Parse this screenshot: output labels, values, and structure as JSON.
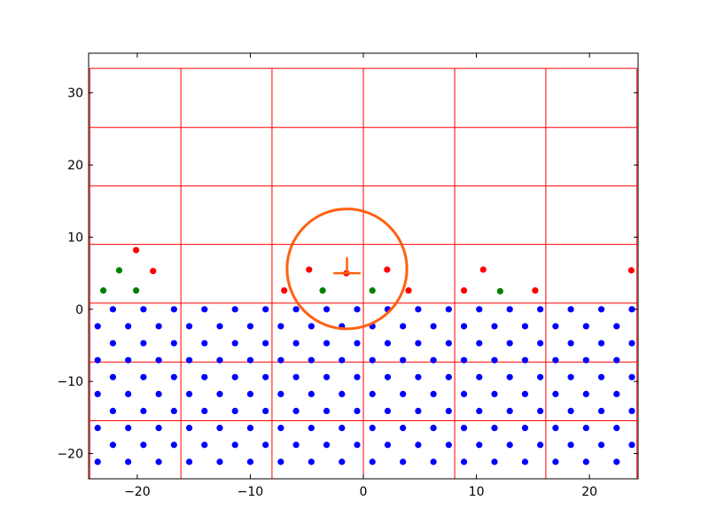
{
  "chart_data": {
    "type": "scatter",
    "title": "",
    "xlabel": "",
    "ylabel": "",
    "xlim": [
      -24.3,
      24.3
    ],
    "ylim": [
      -23.5,
      35.5
    ],
    "x_ticks": [
      -20,
      -10,
      0,
      10,
      20
    ],
    "y_ticks": [
      -20,
      -10,
      0,
      10,
      20,
      30
    ],
    "legend": "none",
    "grid": {
      "color": "#ff0000",
      "x_lines": [
        -24.2,
        -16.14,
        -8.08,
        0,
        8.08,
        16.14,
        24.2
      ],
      "y_lines": [
        -15.45,
        -7.3,
        0.85,
        9.0,
        17.1,
        25.2,
        33.4
      ],
      "x_extent": [
        -24.2,
        24.2
      ],
      "y_extent": [
        -23.5,
        33.4
      ]
    },
    "lattice": {
      "color": "#0000ff",
      "x_start": -23.5,
      "x_step": 2.7,
      "x_end": 24.3,
      "row_y": [
        0,
        -2.35,
        -4.7,
        -7.05,
        -9.4,
        -11.75,
        -14.1,
        -16.45,
        -18.8,
        -21.15
      ],
      "row_x_offset": [
        1.35,
        0
      ]
    },
    "series": [
      {
        "color": "#ff0000",
        "points": [
          [
            -20.1,
            8.2
          ],
          [
            -18.6,
            5.3
          ],
          [
            -7.0,
            2.6
          ],
          [
            -4.8,
            5.5
          ],
          [
            -1.5,
            5.0
          ],
          [
            2.1,
            5.5
          ],
          [
            4.0,
            2.6
          ],
          [
            8.9,
            2.6
          ],
          [
            10.6,
            5.5
          ],
          [
            15.2,
            2.6
          ],
          [
            23.7,
            5.4
          ]
        ]
      },
      {
        "color": "#008000",
        "points": [
          [
            -23.0,
            2.6
          ],
          [
            -21.6,
            5.4
          ],
          [
            -20.1,
            2.6
          ],
          [
            -3.6,
            2.6
          ],
          [
            0.8,
            2.6
          ],
          [
            12.1,
            2.5
          ]
        ]
      }
    ],
    "annotation": {
      "color": "#ff6010",
      "circle": {
        "cx": -1.45,
        "cy": 5.6,
        "r": 5.3
      },
      "cross": {
        "x": -1.45,
        "y": 5.0,
        "arm": 1.2,
        "stem_top": 7.2
      }
    }
  }
}
